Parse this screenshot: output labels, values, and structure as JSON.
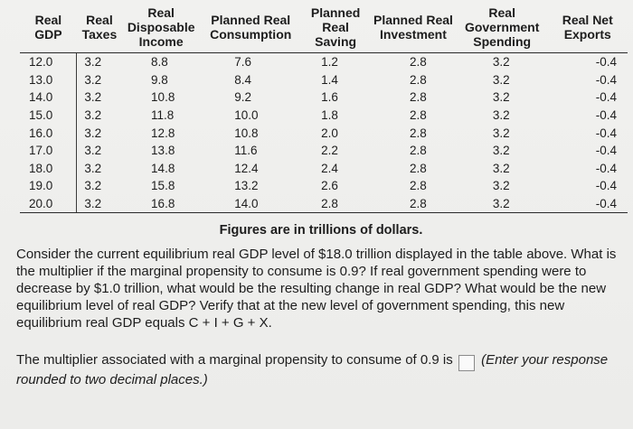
{
  "table": {
    "headers": [
      "Real\nGDP",
      "Real\nTaxes",
      "Real\nDisposable\nIncome",
      "Planned Real\nConsumption",
      "Planned\nReal\nSaving",
      "Planned Real\nInvestment",
      "Real\nGovernment\nSpending",
      "Real Net\nExports"
    ],
    "rows": [
      [
        "12.0",
        "3.2",
        "8.8",
        "7.6",
        "1.2",
        "2.8",
        "3.2",
        "-0.4"
      ],
      [
        "13.0",
        "3.2",
        "9.8",
        "8.4",
        "1.4",
        "2.8",
        "3.2",
        "-0.4"
      ],
      [
        "14.0",
        "3.2",
        "10.8",
        "9.2",
        "1.6",
        "2.8",
        "3.2",
        "-0.4"
      ],
      [
        "15.0",
        "3.2",
        "11.8",
        "10.0",
        "1.8",
        "2.8",
        "3.2",
        "-0.4"
      ],
      [
        "16.0",
        "3.2",
        "12.8",
        "10.8",
        "2.0",
        "2.8",
        "3.2",
        "-0.4"
      ],
      [
        "17.0",
        "3.2",
        "13.8",
        "11.6",
        "2.2",
        "2.8",
        "3.2",
        "-0.4"
      ],
      [
        "18.0",
        "3.2",
        "14.8",
        "12.4",
        "2.4",
        "2.8",
        "3.2",
        "-0.4"
      ],
      [
        "19.0",
        "3.2",
        "15.8",
        "13.2",
        "2.6",
        "2.8",
        "3.2",
        "-0.4"
      ],
      [
        "20.0",
        "3.2",
        "16.8",
        "14.0",
        "2.8",
        "2.8",
        "3.2",
        "-0.4"
      ]
    ]
  },
  "note": "Figures are in trillions of dollars.",
  "question": "Consider the current equilibrium real GDP level of $18.0 trillion displayed in the table above. What is the multiplier if the marginal propensity to consume is 0.9? If real government spending were to decrease by $1.0 trillion, what would be the resulting change in real GDP? What would be the new equilibrium level of real GDP? Verify that at the new level of government spending, this new equilibrium real GDP equals C + I + G + X.",
  "answer": {
    "prompt": "The multiplier associated with a marginal propensity to consume of 0.9 is",
    "value": "",
    "hint": "(Enter your response rounded to two decimal places.)"
  }
}
